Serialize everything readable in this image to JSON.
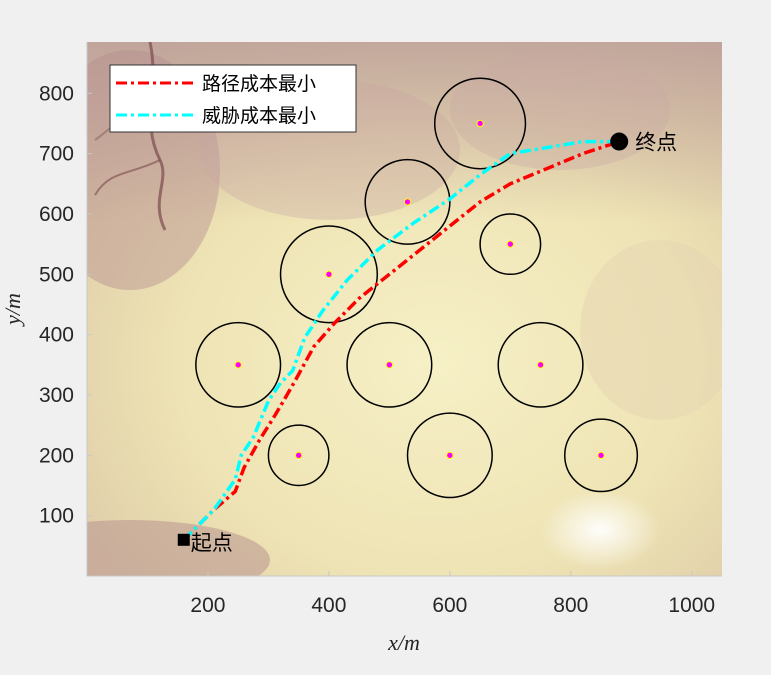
{
  "chart_data": {
    "type": "line",
    "title": "",
    "xlabel": "x/m",
    "ylabel": "y/m",
    "xlim": [
      0,
      1050
    ],
    "ylim": [
      0,
      885
    ],
    "xticks": [
      200,
      400,
      600,
      800,
      1000
    ],
    "yticks": [
      100,
      200,
      300,
      400,
      500,
      600,
      700,
      800
    ],
    "grid": false,
    "legend_position": "top-left",
    "background": "terrain elevation map",
    "series": [
      {
        "name": "路径成本最小",
        "color": "#ff0000",
        "line_style": "dash-dot",
        "x": [
          160,
          210,
          245,
          260,
          285,
          310,
          325,
          345,
          375,
          410,
          450,
          500,
          550,
          600,
          650,
          700,
          760,
          820,
          880
        ],
        "y": [
          60,
          110,
          140,
          180,
          225,
          265,
          290,
          325,
          380,
          420,
          460,
          500,
          540,
          580,
          620,
          650,
          675,
          700,
          720
        ]
      },
      {
        "name": "威胁成本最小",
        "color": "#00ffff",
        "line_style": "dash-dot",
        "x": [
          160,
          210,
          245,
          255,
          275,
          300,
          320,
          340,
          360,
          390,
          430,
          480,
          540,
          600,
          650,
          700,
          760,
          820,
          880
        ],
        "y": [
          60,
          110,
          160,
          200,
          230,
          290,
          320,
          340,
          395,
          440,
          490,
          540,
          585,
          625,
          665,
          700,
          710,
          720,
          720
        ]
      }
    ],
    "threat_circles": [
      {
        "x": 650,
        "y": 750,
        "r": 75
      },
      {
        "x": 530,
        "y": 620,
        "r": 70
      },
      {
        "x": 700,
        "y": 550,
        "r": 50
      },
      {
        "x": 400,
        "y": 500,
        "r": 80
      },
      {
        "x": 250,
        "y": 350,
        "r": 70
      },
      {
        "x": 500,
        "y": 350,
        "r": 70
      },
      {
        "x": 750,
        "y": 350,
        "r": 70
      },
      {
        "x": 350,
        "y": 200,
        "r": 50
      },
      {
        "x": 600,
        "y": 200,
        "r": 70
      },
      {
        "x": 850,
        "y": 200,
        "r": 60
      }
    ],
    "circle_color": "#000000",
    "center_color": "#ff00ff",
    "start": {
      "x": 160,
      "y": 60,
      "label": "起点"
    },
    "goal": {
      "x": 880,
      "y": 720,
      "label": "终点"
    }
  }
}
